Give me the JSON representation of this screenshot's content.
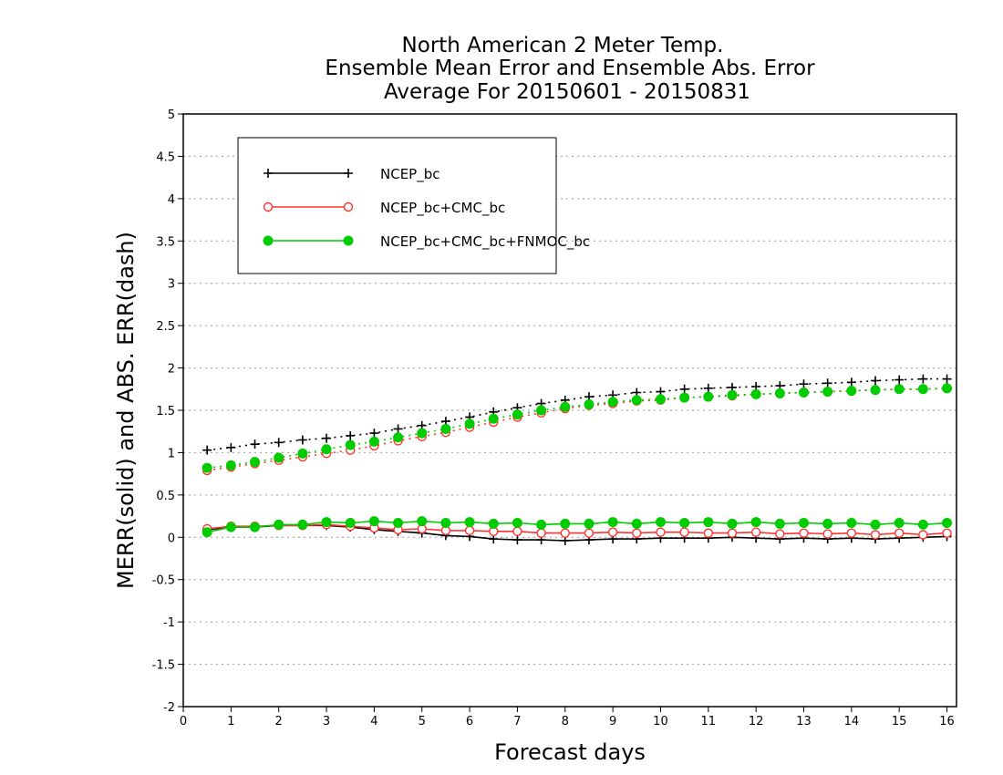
{
  "chart_data": {
    "type": "line",
    "title": [
      "North American 2 Meter Temp.",
      "Ensemble Mean Error and Ensemble Abs. Error",
      "Average For 20150601 - 20150831"
    ],
    "xlabel": "Forecast days",
    "ylabel": "MERR(solid) and ABS. ERR(dash)",
    "xlim": [
      0,
      16.2
    ],
    "ylim": [
      -2,
      5
    ],
    "xticks": [
      0,
      1,
      2,
      3,
      4,
      5,
      6,
      7,
      8,
      9,
      10,
      11,
      12,
      13,
      14,
      15,
      16
    ],
    "yticks": [
      -2,
      -1.5,
      -1,
      -0.5,
      0,
      0.5,
      1,
      1.5,
      2,
      2.5,
      3,
      3.5,
      4,
      4.5,
      5
    ],
    "grid": true,
    "legend_position": "top-left",
    "x": [
      0.5,
      1,
      1.5,
      2,
      2.5,
      3,
      3.5,
      4,
      4.5,
      5,
      5.5,
      6,
      6.5,
      7,
      7.5,
      8,
      8.5,
      9,
      9.5,
      10,
      10.5,
      11,
      11.5,
      12,
      12.5,
      13,
      13.5,
      14,
      14.5,
      15,
      15.5,
      16
    ],
    "series": [
      {
        "name": "NCEP_bc",
        "color": "#000000",
        "marker": "plus",
        "merr": [
          0.09,
          0.12,
          0.12,
          0.14,
          0.14,
          0.14,
          0.12,
          0.09,
          0.07,
          0.05,
          0.02,
          0.01,
          -0.02,
          -0.03,
          -0.03,
          -0.04,
          -0.03,
          -0.02,
          -0.02,
          -0.01,
          -0.01,
          -0.01,
          0.0,
          -0.01,
          -0.02,
          -0.01,
          -0.02,
          -0.01,
          -0.02,
          -0.01,
          0.0,
          0.01
        ],
        "abs_err": [
          1.03,
          1.06,
          1.1,
          1.12,
          1.15,
          1.17,
          1.2,
          1.23,
          1.28,
          1.32,
          1.37,
          1.42,
          1.48,
          1.53,
          1.58,
          1.62,
          1.66,
          1.68,
          1.71,
          1.72,
          1.75,
          1.76,
          1.77,
          1.78,
          1.79,
          1.81,
          1.82,
          1.83,
          1.85,
          1.86,
          1.87,
          1.87
        ]
      },
      {
        "name": "NCEP_bc+CMC_bc",
        "color": "#ff3333",
        "marker": "open-circle",
        "merr": [
          0.1,
          0.13,
          0.13,
          0.14,
          0.14,
          0.15,
          0.13,
          0.11,
          0.09,
          0.1,
          0.08,
          0.08,
          0.07,
          0.07,
          0.05,
          0.05,
          0.05,
          0.06,
          0.05,
          0.06,
          0.06,
          0.05,
          0.05,
          0.06,
          0.04,
          0.05,
          0.04,
          0.05,
          0.03,
          0.05,
          0.03,
          0.05
        ],
        "abs_err": [
          0.79,
          0.83,
          0.87,
          0.91,
          0.95,
          0.99,
          1.03,
          1.08,
          1.14,
          1.19,
          1.24,
          1.3,
          1.36,
          1.42,
          1.47,
          1.52,
          1.56,
          1.58,
          1.61,
          1.62,
          1.65,
          1.66,
          1.67,
          1.69,
          1.7,
          1.71,
          1.72,
          1.73,
          1.74,
          1.75,
          1.75,
          1.76
        ]
      },
      {
        "name": "NCEP_bc+CMC_bc+FNMOC_bc",
        "color": "#00cc00",
        "marker": "filled-circle",
        "merr": [
          0.06,
          0.12,
          0.12,
          0.15,
          0.15,
          0.18,
          0.17,
          0.19,
          0.17,
          0.19,
          0.17,
          0.18,
          0.16,
          0.17,
          0.15,
          0.16,
          0.16,
          0.18,
          0.16,
          0.18,
          0.17,
          0.18,
          0.16,
          0.18,
          0.16,
          0.17,
          0.16,
          0.17,
          0.15,
          0.17,
          0.15,
          0.17
        ],
        "abs_err": [
          0.82,
          0.85,
          0.89,
          0.94,
          0.99,
          1.04,
          1.09,
          1.13,
          1.18,
          1.23,
          1.28,
          1.34,
          1.4,
          1.45,
          1.5,
          1.54,
          1.57,
          1.6,
          1.62,
          1.63,
          1.65,
          1.66,
          1.68,
          1.69,
          1.7,
          1.71,
          1.72,
          1.73,
          1.74,
          1.75,
          1.75,
          1.76
        ]
      }
    ]
  }
}
